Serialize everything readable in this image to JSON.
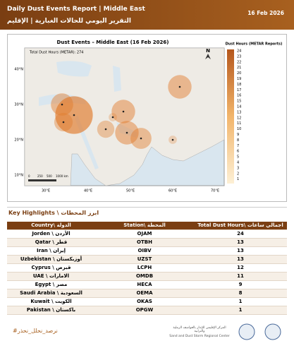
{
  "header": {
    "title": "Daily Dust Events Report | Middle East",
    "date": "16 Feb 2026",
    "subtitle_ar": "التقرير اليومي للحالات الغبارية | الإقليم"
  },
  "map": {
    "title": "Dust Events – Middle East (16 Feb 2026)",
    "total": "Total Dust Hours (METAR): 274",
    "north": "N",
    "legend_title": "Dust Hours (METAR Reports)",
    "legend_ticks": [
      "24",
      "23",
      "22",
      "21",
      "20",
      "19",
      "18",
      "17",
      "16",
      "15",
      "14",
      "13",
      "12",
      "11",
      "10",
      "9",
      "8",
      "7",
      "6",
      "5",
      "4",
      "3",
      "2",
      "1"
    ],
    "lon_labels": [
      "30°E",
      "40°E",
      "50°E",
      "60°E",
      "70°E"
    ],
    "lat_labels": [
      "40°N",
      "30°N",
      "20°N",
      "10°N"
    ],
    "scale_labels": [
      "0",
      "250",
      "500",
      "1000 km"
    ]
  },
  "highlights_title": "Key Highlights \\ ابرز المحطات",
  "table": {
    "headers": [
      "Country\\ الدولة",
      "Station\\ المحطة",
      "Total Dust Hours\\ اجمالي ساعات الغبار"
    ],
    "rows": [
      {
        "country": "Jorden \\ الأردن",
        "station": "OJAM",
        "hours": 24
      },
      {
        "country": "Qatar \\ قطر",
        "station": "OTBH",
        "hours": 13
      },
      {
        "country": "Iran \\ إيران",
        "station": "OIBV",
        "hours": 13
      },
      {
        "country": "Uzbekistan \\ أوزبكستان",
        "station": "UZST",
        "hours": 13
      },
      {
        "country": "Cyprus \\ قبرص",
        "station": "LCPH",
        "hours": 12
      },
      {
        "country": "UAE \\ الامارات",
        "station": "OMDB",
        "hours": 11
      },
      {
        "country": "Egypt \\ مصر",
        "station": "HECA",
        "hours": 9
      },
      {
        "country": "Saudi Arabia \\ السعودية",
        "station": "OEMA",
        "hours": 8
      },
      {
        "country": "Kuwait \\ الكويت",
        "station": "OKAS",
        "hours": 1
      },
      {
        "country": "Pakistan \\ باكستان",
        "station": "OPGW",
        "hours": 1
      }
    ]
  },
  "footer": {
    "hashtag": "#نرصد_نحلل_نحذر",
    "org_ar": "المركز الإقليمي للإنذار بالعواصف الرملية والترابية",
    "org_en": "Sand and Dust Storm Regional Center"
  }
}
